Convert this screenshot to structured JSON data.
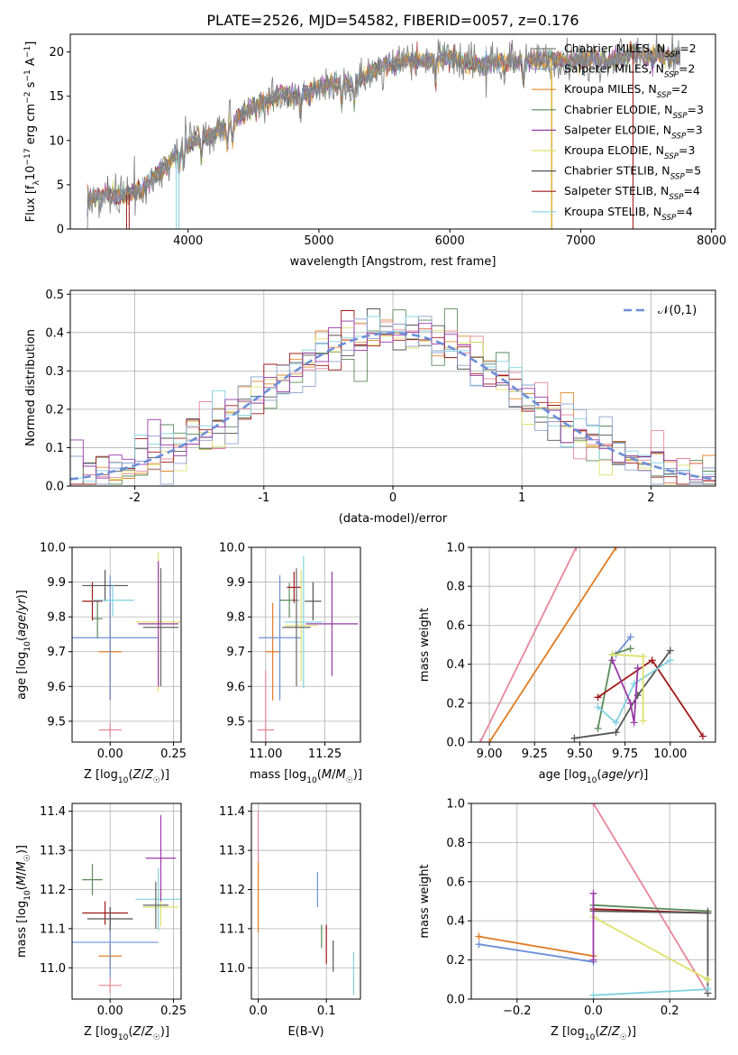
{
  "title": "PLATE=2526, MJD=54582, FIBERID=0057, z=0.176",
  "palette": [
    "#7f7f7f",
    "#8fa0cc",
    "#e08a2c",
    "#5a8a5a",
    "#9a3aa8",
    "#dde06a",
    "#555555",
    "#a01818",
    "#80d0e0"
  ],
  "small_palette": [
    "#e8869b",
    "#e07b22",
    "#6c8fd8",
    "#5a8a5a",
    "#a01818",
    "#555555",
    "#80d0e0",
    "#dde06a",
    "#9a3aa8",
    "#666666"
  ],
  "chart_data": [
    {
      "id": "spectrum",
      "type": "line",
      "xlabel": "wavelength [Angstrom, rest frame]",
      "ylabel": "Flux [f_λ10^-17 erg cm^-2 s^-1 A^-1]",
      "xlim": [
        3100,
        8030
      ],
      "ylim": [
        0,
        22
      ],
      "xticks": [
        4000,
        5000,
        6000,
        7000,
        8000
      ],
      "yticks": [
        0,
        5,
        10,
        15,
        20
      ],
      "legend_position": "upper right",
      "series": [
        {
          "name": "Chabrier MILES, N_SSP=2"
        },
        {
          "name": "Salpeter MILES, N_SSP=2"
        },
        {
          "name": "Kroupa MILES, N_SSP=2"
        },
        {
          "name": "Chabrier ELODIE, N_SSP=3"
        },
        {
          "name": "Salpeter ELODIE, N_SSP=3"
        },
        {
          "name": "Kroupa ELODIE, N_SSP=3"
        },
        {
          "name": "Chabrier STELIB, N_SSP=5"
        },
        {
          "name": "Salpeter STELIB, N_SSP=4"
        },
        {
          "name": "Kroupa STELIB, N_SSP=4"
        }
      ],
      "continuum": [
        [
          3230,
          3.2
        ],
        [
          3350,
          3.8
        ],
        [
          3500,
          3.7
        ],
        [
          3650,
          4.5
        ],
        [
          3800,
          6.5
        ],
        [
          3900,
          8.3
        ],
        [
          4000,
          9.8
        ],
        [
          4100,
          10.3
        ],
        [
          4200,
          11.0
        ],
        [
          4300,
          11.5
        ],
        [
          4400,
          12.8
        ],
        [
          4500,
          13.8
        ],
        [
          4600,
          14.5
        ],
        [
          4700,
          15.2
        ],
        [
          4800,
          15.0
        ],
        [
          4900,
          15.3
        ],
        [
          5000,
          16.0
        ],
        [
          5100,
          16.6
        ],
        [
          5200,
          16.4
        ],
        [
          5300,
          16.6
        ],
        [
          5400,
          17.8
        ],
        [
          5500,
          18.5
        ],
        [
          5600,
          18.7
        ],
        [
          5700,
          19.1
        ],
        [
          5800,
          18.9
        ],
        [
          5900,
          19.2
        ],
        [
          6000,
          19.4
        ],
        [
          6100,
          18.7
        ],
        [
          6200,
          18.6
        ],
        [
          6300,
          18.9
        ],
        [
          6400,
          18.8
        ],
        [
          6500,
          18.9
        ],
        [
          6600,
          19.1
        ],
        [
          6700,
          19.0
        ],
        [
          6800,
          19.2
        ],
        [
          6900,
          18.8
        ],
        [
          7000,
          19.1
        ],
        [
          7100,
          19.3
        ],
        [
          7200,
          19.0
        ],
        [
          7300,
          19.2
        ],
        [
          7400,
          20.1
        ],
        [
          7500,
          19.5
        ],
        [
          7600,
          19.6
        ],
        [
          7700,
          19.4
        ]
      ]
    },
    {
      "id": "residuals",
      "type": "histogram",
      "xlabel": "(data-model)/error",
      "ylabel": "Normed distribution",
      "xlim": [
        -2.5,
        2.5
      ],
      "ylim": [
        0,
        0.51
      ],
      "xticks": [
        -2,
        -1,
        0,
        1,
        2
      ],
      "yticks": [
        0.0,
        0.1,
        0.2,
        0.3,
        0.4,
        0.5
      ],
      "legend": [
        "𝒩(0,1)"
      ],
      "reference_curve": "standard normal",
      "bin_width": 0.1
    },
    {
      "id": "age_vs_Z",
      "type": "scatter",
      "xlabel": "Z [log10(Z/Z☉)]",
      "ylabel": "age  [log10(age/yr)]",
      "xlim": [
        -0.15,
        0.28
      ],
      "ylim": [
        9.44,
        10.0
      ],
      "xticks": [
        0.0,
        0.25
      ],
      "yticks": [
        9.5,
        9.6,
        9.7,
        9.8,
        9.9,
        10.0
      ],
      "points": [
        {
          "x": 0.0,
          "y": 9.475,
          "xerr": 0.045,
          "yerr": 0.02
        },
        {
          "x": 0.0,
          "y": 9.7,
          "xerr": 0.045,
          "yerr": 0.14
        },
        {
          "x": 0.0,
          "y": 9.74,
          "xerr": 0.19,
          "yerr": 0.18
        },
        {
          "x": -0.05,
          "y": 9.795,
          "xerr": 0.02,
          "yerr": 0.055
        },
        {
          "x": -0.07,
          "y": 9.845,
          "xerr": 0.04,
          "yerr": 0.055
        },
        {
          "x": -0.02,
          "y": 9.89,
          "xerr": 0.09,
          "yerr": 0.045
        },
        {
          "x": 0.01,
          "y": 9.848,
          "xerr": 0.085,
          "yerr": 0.045
        },
        {
          "x": 0.19,
          "y": 9.785,
          "xerr": 0.09,
          "yerr": 0.2
        },
        {
          "x": 0.19,
          "y": 9.78,
          "xerr": 0.08,
          "yerr": 0.18
        },
        {
          "x": 0.2,
          "y": 9.77,
          "xerr": 0.07,
          "yerr": 0.17
        }
      ]
    },
    {
      "id": "age_vs_mass",
      "type": "scatter",
      "xlabel": "mass [log10(M/M☉)]",
      "ylabel": "",
      "xlim": [
        10.94,
        11.4
      ],
      "ylim": [
        9.44,
        10.0
      ],
      "xticks": [
        11.0,
        11.25
      ],
      "yticks": [
        9.5,
        9.6,
        9.7,
        9.8,
        9.9,
        10.0
      ],
      "points": [
        {
          "x": 11.0,
          "y": 9.475,
          "xerr": 0.035,
          "yerr": 0.17
        },
        {
          "x": 11.03,
          "y": 9.7,
          "xerr": 0.03,
          "yerr": 0.14
        },
        {
          "x": 11.06,
          "y": 9.74,
          "xerr": 0.09,
          "yerr": 0.18
        },
        {
          "x": 11.1,
          "y": 9.848,
          "xerr": 0.04,
          "yerr": 0.05
        },
        {
          "x": 11.12,
          "y": 9.885,
          "xerr": 0.03,
          "yerr": 0.045
        },
        {
          "x": 11.2,
          "y": 9.845,
          "xerr": 0.035,
          "yerr": 0.055
        },
        {
          "x": 11.16,
          "y": 9.785,
          "xerr": 0.08,
          "yerr": 0.19
        },
        {
          "x": 11.15,
          "y": 9.775,
          "xerr": 0.07,
          "yerr": 0.16
        },
        {
          "x": 11.28,
          "y": 9.78,
          "xerr": 0.11,
          "yerr": 0.15
        },
        {
          "x": 11.13,
          "y": 9.77,
          "xerr": 0.06,
          "yerr": 0.17
        }
      ]
    },
    {
      "id": "weight_vs_age",
      "type": "line",
      "xlabel": "age  [log10(age/yr)]",
      "ylabel": "mass weight",
      "xlim": [
        8.9,
        10.25
      ],
      "ylim": [
        0,
        1.0
      ],
      "xticks": [
        9.0,
        9.25,
        9.5,
        9.75,
        10.0
      ],
      "yticks": [
        0.0,
        0.2,
        0.4,
        0.6,
        0.8,
        1.0
      ],
      "series": [
        {
          "points": [
            [
              8.95,
              0.0
            ],
            [
              9.48,
              1.0
            ]
          ]
        },
        {
          "points": [
            [
              9.0,
              0.0
            ],
            [
              9.7,
              1.0
            ]
          ]
        },
        {
          "points": [
            [
              9.7,
              0.45
            ],
            [
              9.78,
              0.54
            ]
          ]
        },
        {
          "points": [
            [
              9.6,
              0.07
            ],
            [
              9.68,
              0.45
            ],
            [
              9.78,
              0.48
            ]
          ]
        },
        {
          "points": [
            [
              9.6,
              0.23
            ],
            [
              9.9,
              0.42
            ],
            [
              10.18,
              0.03
            ]
          ]
        },
        {
          "points": [
            [
              9.47,
              0.02
            ],
            [
              9.7,
              0.05
            ],
            [
              9.82,
              0.24
            ],
            [
              10.0,
              0.47
            ]
          ]
        },
        {
          "points": [
            [
              9.6,
              0.18
            ],
            [
              9.7,
              0.1
            ],
            [
              9.8,
              0.3
            ],
            [
              10.0,
              0.42
            ]
          ]
        },
        {
          "points": [
            [
              9.68,
              0.45
            ],
            [
              9.85,
              0.44
            ],
            [
              9.85,
              0.11
            ]
          ]
        },
        {
          "points": [
            [
              9.68,
              0.42
            ],
            [
              9.78,
              0.2
            ],
            [
              9.8,
              0.1
            ],
            [
              9.82,
              0.38
            ]
          ]
        }
      ]
    },
    {
      "id": "mass_vs_Z",
      "type": "scatter",
      "xlabel": "Z [log10(Z/Z☉)]",
      "ylabel": "mass [log10(M/M☉)]",
      "xlim": [
        -0.15,
        0.28
      ],
      "ylim": [
        10.92,
        11.42
      ],
      "xticks": [
        0.0,
        0.25
      ],
      "yticks": [
        11.0,
        11.1,
        11.2,
        11.3,
        11.4
      ],
      "points": [
        {
          "x": 0.0,
          "y": 10.955,
          "xerr": 0.045,
          "yerr": 0.02
        },
        {
          "x": 0.0,
          "y": 11.03,
          "xerr": 0.045,
          "yerr": 0.03
        },
        {
          "x": 0.0,
          "y": 11.065,
          "xerr": 0.19,
          "yerr": 0.09
        },
        {
          "x": -0.07,
          "y": 11.225,
          "xerr": 0.04,
          "yerr": 0.04
        },
        {
          "x": -0.02,
          "y": 11.14,
          "xerr": 0.09,
          "yerr": 0.03
        },
        {
          "x": 0.0,
          "y": 11.125,
          "xerr": 0.09,
          "yerr": 0.03
        },
        {
          "x": 0.19,
          "y": 11.175,
          "xerr": 0.09,
          "yerr": 0.08
        },
        {
          "x": 0.2,
          "y": 11.155,
          "xerr": 0.07,
          "yerr": 0.05
        },
        {
          "x": 0.2,
          "y": 11.28,
          "xerr": 0.06,
          "yerr": 0.11
        },
        {
          "x": 0.18,
          "y": 11.16,
          "xerr": 0.05,
          "yerr": 0.06
        }
      ]
    },
    {
      "id": "mass_vs_EBV",
      "type": "scatter",
      "xlabel": "E(B-V)",
      "ylabel": "",
      "xlim": [
        -0.01,
        0.15
      ],
      "ylim": [
        10.92,
        11.42
      ],
      "xticks": [
        0.0,
        0.1
      ],
      "yticks": [
        11.0,
        11.1,
        11.2,
        11.3,
        11.4
      ],
      "points": [
        {
          "x": 0.0,
          "y": 11.32,
          "xerr": 0.0,
          "yerr": 0.08
        },
        {
          "x": 0.0,
          "y": 11.18,
          "xerr": 0.0,
          "yerr": 0.09
        },
        {
          "x": 0.087,
          "y": 11.2,
          "xerr": 0.0,
          "yerr": 0.045
        },
        {
          "x": 0.093,
          "y": 11.08,
          "xerr": 0.0,
          "yerr": 0.03
        },
        {
          "x": 0.1,
          "y": 11.06,
          "xerr": 0.0,
          "yerr": 0.05
        },
        {
          "x": 0.11,
          "y": 11.03,
          "xerr": 0.0,
          "yerr": 0.04
        },
        {
          "x": 0.14,
          "y": 10.985,
          "xerr": 0.0,
          "yerr": 0.055
        }
      ]
    },
    {
      "id": "weight_vs_Z",
      "type": "line",
      "xlabel": "Z [log10(Z/Z☉)]",
      "ylabel": "mass weight",
      "xlim": [
        -0.32,
        0.32
      ],
      "ylim": [
        0,
        1.0
      ],
      "xticks": [
        -0.2,
        0.0,
        0.2
      ],
      "yticks": [
        0.0,
        0.2,
        0.4,
        0.6,
        0.8,
        1.0
      ],
      "series": [
        {
          "points": [
            [
              0.0,
              1.0
            ],
            [
              0.3,
              0.03
            ]
          ]
        },
        {
          "points": [
            [
              -0.3,
              0.32
            ],
            [
              0.0,
              0.22
            ]
          ]
        },
        {
          "points": [
            [
              -0.3,
              0.28
            ],
            [
              0.0,
              0.19
            ]
          ]
        },
        {
          "points": [
            [
              0.0,
              0.48
            ],
            [
              0.3,
              0.45
            ]
          ]
        },
        {
          "points": [
            [
              0.0,
              0.46
            ],
            [
              0.3,
              0.44
            ]
          ]
        },
        {
          "points": [
            [
              0.0,
              0.45
            ],
            [
              0.3,
              0.44
            ],
            [
              0.3,
              0.03
            ]
          ]
        },
        {
          "points": [
            [
              0.0,
              0.02
            ],
            [
              0.3,
              0.05
            ]
          ]
        },
        {
          "points": [
            [
              0.0,
              0.42
            ],
            [
              0.3,
              0.1
            ]
          ]
        },
        {
          "points": [
            [
              0.0,
              0.54
            ],
            [
              0.0,
              0.2
            ]
          ]
        }
      ]
    }
  ]
}
